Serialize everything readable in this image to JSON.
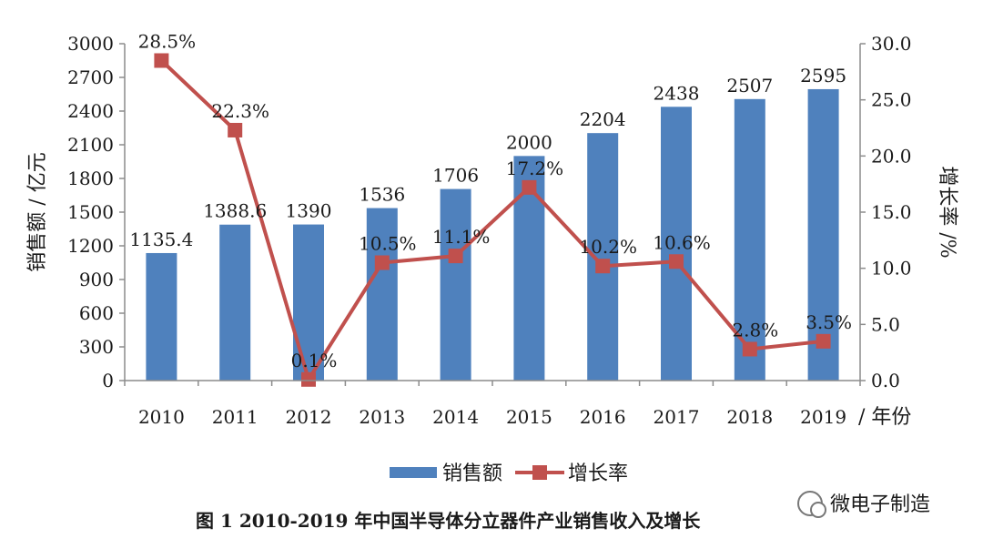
{
  "chart_data": {
    "type": "bar",
    "categories": [
      "2010",
      "2011",
      "2012",
      "2013",
      "2014",
      "2015",
      "2016",
      "2017",
      "2018",
      "2019"
    ],
    "series": [
      {
        "name": "销售额",
        "type": "bar",
        "axis": "left",
        "values": [
          1135.4,
          1388.6,
          1390,
          1536,
          1706,
          2000,
          2204,
          2438,
          2507,
          2595
        ],
        "labels": [
          "1135.4",
          "1388.6",
          "1390",
          "1536",
          "1706",
          "2000",
          "2204",
          "2438",
          "2507",
          "2595"
        ]
      },
      {
        "name": "增长率",
        "type": "line",
        "axis": "right",
        "values": [
          28.5,
          22.3,
          0.1,
          10.5,
          11.1,
          17.2,
          10.2,
          10.6,
          2.8,
          3.5
        ],
        "labels": [
          "28.5%",
          "22.3%",
          "0.1%",
          "10.5%",
          "11.1%",
          "17.2%",
          "10.2%",
          "10.6%",
          "2.8%",
          "3.5%"
        ]
      }
    ],
    "ylabel": "销售额 / 亿元",
    "y2label": "增长率 /%",
    "xlabel": "/ 年份",
    "ylim": [
      0,
      3000
    ],
    "y2lim": [
      0,
      30
    ],
    "yticks": [
      "0",
      "300",
      "600",
      "900",
      "1200",
      "1500",
      "1800",
      "2100",
      "2400",
      "2700",
      "3000"
    ],
    "y2ticks": [
      "0.0",
      "5.0",
      "10.0",
      "15.0",
      "20.0",
      "25.0",
      "30.0"
    ],
    "legend_position": "bottom",
    "grid": false,
    "caption": "图 1  2010-2019 年中国半导体分立器件产业销售收入及增长",
    "watermark": "微电子制造",
    "colors": {
      "bar": "#4f81bd",
      "line": "#c0504d"
    }
  }
}
